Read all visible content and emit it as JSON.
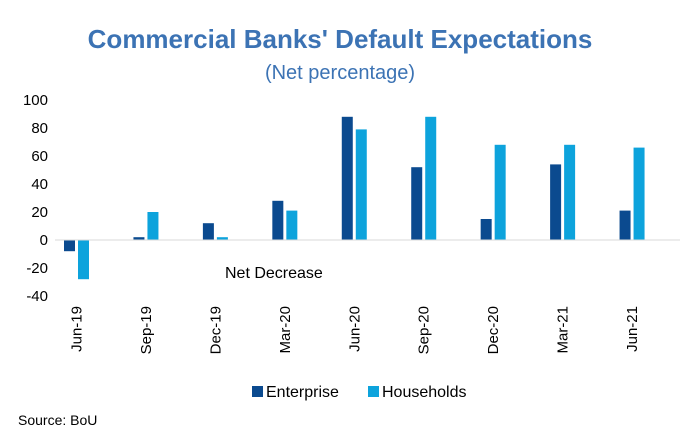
{
  "chart_data": {
    "type": "bar",
    "title": "Commercial Banks' Default Expectations",
    "subtitle": "(Net percentage)",
    "categories": [
      "Jun-19",
      "Sep-19",
      "Dec-19",
      "Mar-20",
      "Jun-20",
      "Sep-20",
      "Dec-20",
      "Mar-21",
      "Jun-21"
    ],
    "series": [
      {
        "name": "Enterprise",
        "color": "#0b4a8f",
        "values": [
          -8,
          2,
          12,
          28,
          88,
          52,
          15,
          54,
          21
        ]
      },
      {
        "name": "Households",
        "color": "#0da3dc",
        "values": [
          -28,
          20,
          2,
          21,
          79,
          88,
          68,
          68,
          66
        ]
      }
    ],
    "ylim": [
      -40,
      100
    ],
    "yticks": [
      -40,
      -20,
      0,
      20,
      40,
      60,
      80,
      100
    ],
    "annotation": "Net Decrease",
    "legend": "bottom",
    "grid": false
  },
  "source": "Source: BoU"
}
